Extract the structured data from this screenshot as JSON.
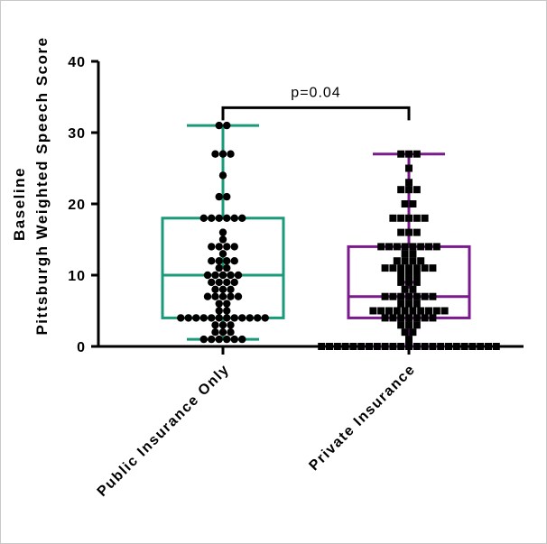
{
  "chart_data": {
    "type": "box",
    "title": "",
    "ylabel_lines": [
      "Baseline",
      "Pittsburgh Weighted Speech Score"
    ],
    "xlabel": "",
    "ylim": [
      0,
      40
    ],
    "yticks": [
      0,
      10,
      20,
      30,
      40
    ],
    "categories": [
      "Public Insurance Only",
      "Private Insurance"
    ],
    "colors": {
      "Public Insurance Only": "#1a9a78",
      "Private Insurance": "#7a1a8c",
      "points": "#000000"
    },
    "boxes": [
      {
        "name": "Public Insurance Only",
        "min": 1,
        "q1": 4,
        "median": 10,
        "mean": 12,
        "q3": 18,
        "max": 31,
        "marker": "circle",
        "points": [
          31,
          31,
          27,
          27,
          27,
          24,
          21,
          21,
          18,
          18,
          18,
          18,
          18,
          18,
          16,
          15,
          14,
          14,
          14,
          14,
          13,
          12,
          12,
          12,
          12,
          11,
          11,
          10,
          10,
          10,
          10,
          10,
          9,
          9,
          9,
          9,
          8,
          8,
          8,
          7,
          7,
          7,
          7,
          7,
          6,
          6,
          5,
          5,
          4,
          4,
          4,
          4,
          4,
          4,
          4,
          4,
          4,
          4,
          4,
          4,
          3,
          3,
          3,
          2,
          2,
          2,
          1,
          1,
          1,
          1,
          1,
          1
        ]
      },
      {
        "name": "Private Insurance",
        "min": 0,
        "q1": 4,
        "median": 7,
        "mean": 9,
        "q3": 14,
        "max": 27,
        "marker": "square",
        "points": [
          27,
          27,
          27,
          25,
          23,
          22,
          22,
          22,
          20,
          20,
          18,
          18,
          18,
          18,
          18,
          16,
          16,
          16,
          14,
          14,
          14,
          14,
          14,
          14,
          14,
          14,
          13,
          13,
          12,
          12,
          12,
          12,
          11,
          11,
          11,
          11,
          11,
          11,
          11,
          10,
          10,
          10,
          9,
          9,
          9,
          8,
          8,
          7,
          7,
          7,
          7,
          7,
          7,
          7,
          6,
          6,
          6,
          5,
          5,
          5,
          5,
          5,
          5,
          5,
          5,
          5,
          5,
          4,
          4,
          4,
          4,
          4,
          4,
          4,
          3,
          3,
          3,
          2,
          2,
          1,
          0,
          0,
          0,
          0,
          0,
          0,
          0,
          0,
          0,
          0,
          0,
          0,
          0,
          0,
          0,
          0,
          0,
          0,
          0,
          0,
          0,
          0,
          0
        ]
      }
    ],
    "annotation": {
      "text": "p=0.04",
      "between": [
        "Public Insurance Only",
        "Private Insurance"
      ],
      "y": 33.5
    },
    "grid": false,
    "legend": "none"
  }
}
